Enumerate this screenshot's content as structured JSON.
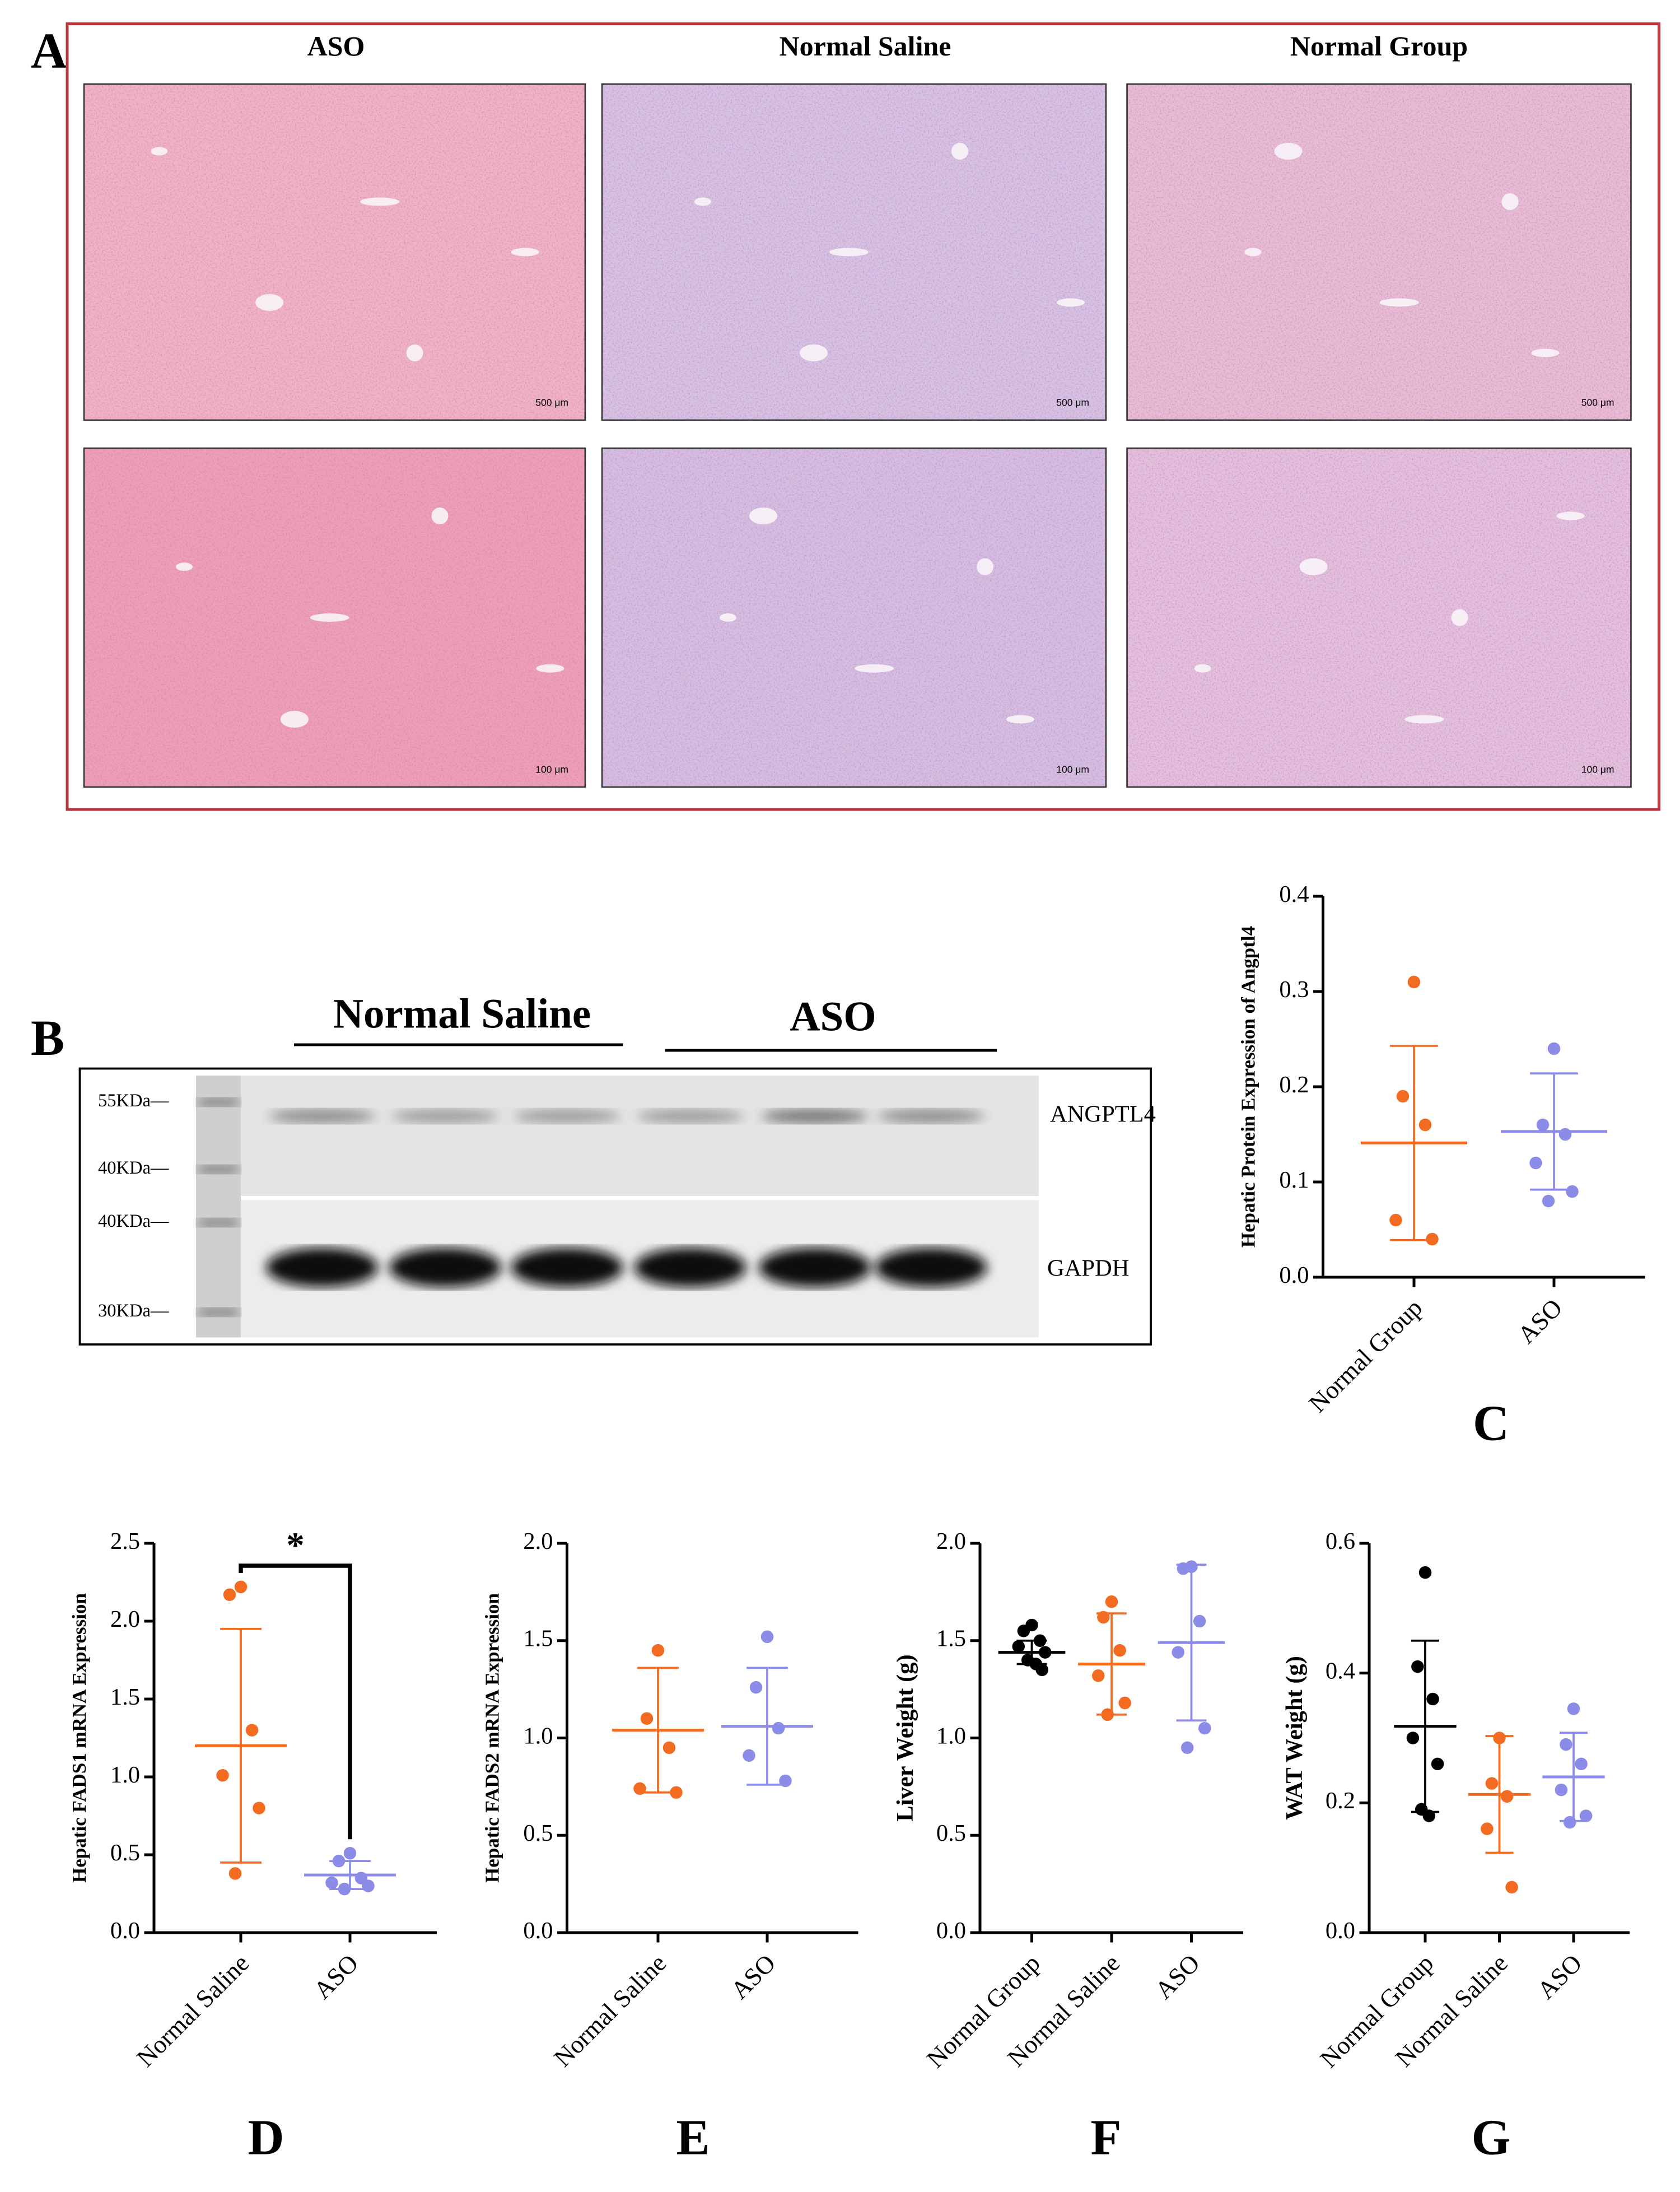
{
  "panel_a": {
    "label": "A",
    "columns": [
      "ASO",
      "Normal Saline",
      "Normal Group"
    ],
    "scale_bars": [
      "500 μm",
      "100 μm"
    ]
  },
  "panel_b": {
    "label": "B",
    "groups": [
      "Normal Saline",
      "ASO"
    ],
    "markers": [
      "55KDa—",
      "40KDa—",
      "40KDa—",
      "30KDa—"
    ],
    "proteins": [
      "ANGPTL4",
      "GAPDH"
    ]
  },
  "chart_data": [
    {
      "type": "dotplot",
      "panel": "C",
      "ylabel": "Hepatic Protein Expression of Angptl4",
      "ylim": [
        0,
        0.4
      ],
      "yticks": [
        {
          "value": 0,
          "label": "0.0"
        },
        0.1,
        0.2,
        0.3,
        0.4
      ],
      "groups": [
        {
          "name": "Normal Group",
          "color": "#f26b21",
          "values": [
            0.31,
            0.19,
            0.16,
            0.06,
            0.04
          ],
          "mean": 0.141,
          "sd": 0.102
        },
        {
          "name": "ASO",
          "color": "#8b8be8",
          "values": [
            0.24,
            0.16,
            0.15,
            0.12,
            0.09,
            0.08
          ],
          "mean": 0.153,
          "sd": 0.061
        }
      ]
    },
    {
      "type": "dotplot",
      "panel": "D",
      "ylabel": "Hepatic FADS1 mRNA Expression",
      "annotation": "*",
      "ylim": [
        0,
        2.5
      ],
      "yticks": [
        {
          "value": 0,
          "label": "0.0"
        },
        0.5,
        {
          "value": 1,
          "label": "1.0"
        },
        1.5,
        {
          "value": 2,
          "label": "2.0"
        },
        2.5
      ],
      "groups": [
        {
          "name": "Normal Saline",
          "color": "#f26b21",
          "values": [
            2.22,
            2.17,
            1.3,
            1.01,
            0.8,
            0.38
          ],
          "mean": 1.2,
          "sd": 0.75
        },
        {
          "name": "ASO",
          "color": "#8b8be8",
          "values": [
            0.51,
            0.46,
            0.35,
            0.32,
            0.3,
            0.28
          ],
          "mean": 0.37,
          "sd": 0.09
        }
      ]
    },
    {
      "type": "dotplot",
      "panel": "E",
      "ylabel": "Hepatic FADS2 mRNA Expression",
      "ylim": [
        0,
        2
      ],
      "yticks": [
        {
          "value": 0,
          "label": "0.0"
        },
        0.5,
        {
          "value": 1,
          "label": "1.0"
        },
        1.5,
        {
          "value": 2,
          "label": "2.0"
        }
      ],
      "groups": [
        {
          "name": "Normal Saline",
          "color": "#f26b21",
          "values": [
            1.45,
            1.1,
            0.95,
            0.74,
            0.72
          ],
          "mean": 1.04,
          "sd": 0.32
        },
        {
          "name": "ASO",
          "color": "#8b8be8",
          "values": [
            1.52,
            1.26,
            1.05,
            0.91,
            0.78
          ],
          "mean": 1.06,
          "sd": 0.3
        }
      ]
    },
    {
      "type": "dotplot",
      "panel": "F",
      "ylabel": "Liver Weight (g)",
      "ylim": [
        0,
        2
      ],
      "yticks": [
        {
          "value": 0,
          "label": "0.0"
        },
        0.5,
        {
          "value": 1,
          "label": "1.0"
        },
        1.5,
        {
          "value": 2,
          "label": "2.0"
        }
      ],
      "groups": [
        {
          "name": "Normal Group",
          "color": "#000000",
          "values": [
            1.58,
            1.55,
            1.5,
            1.47,
            1.44,
            1.4,
            1.38,
            1.35
          ],
          "mean": 1.44,
          "sd": 0.06
        },
        {
          "name": "Normal Saline",
          "color": "#f26b21",
          "values": [
            1.7,
            1.62,
            1.45,
            1.32,
            1.18,
            1.12
          ],
          "mean": 1.38,
          "sd": 0.26
        },
        {
          "name": "ASO",
          "color": "#8b8be8",
          "values": [
            1.88,
            1.87,
            1.6,
            1.44,
            1.05,
            0.95
          ],
          "mean": 1.49,
          "sd": 0.4
        }
      ]
    },
    {
      "type": "dotplot",
      "panel": "G",
      "ylabel": "WAT Weight (g)",
      "ylim": [
        0,
        0.6
      ],
      "yticks": [
        {
          "value": 0,
          "label": "0.0"
        },
        0.2,
        0.4,
        0.6
      ],
      "groups": [
        {
          "name": "Normal Group",
          "color": "#000000",
          "values": [
            0.555,
            0.41,
            0.36,
            0.3,
            0.26,
            0.19,
            0.18
          ],
          "mean": 0.318,
          "sd": 0.132
        },
        {
          "name": "Normal Saline",
          "color": "#f26b21",
          "values": [
            0.3,
            0.23,
            0.21,
            0.16,
            0.07
          ],
          "mean": 0.213,
          "sd": 0.09
        },
        {
          "name": "ASO",
          "color": "#8b8be8",
          "values": [
            0.345,
            0.29,
            0.26,
            0.22,
            0.18,
            0.17
          ],
          "mean": 0.24,
          "sd": 0.068
        }
      ]
    }
  ]
}
